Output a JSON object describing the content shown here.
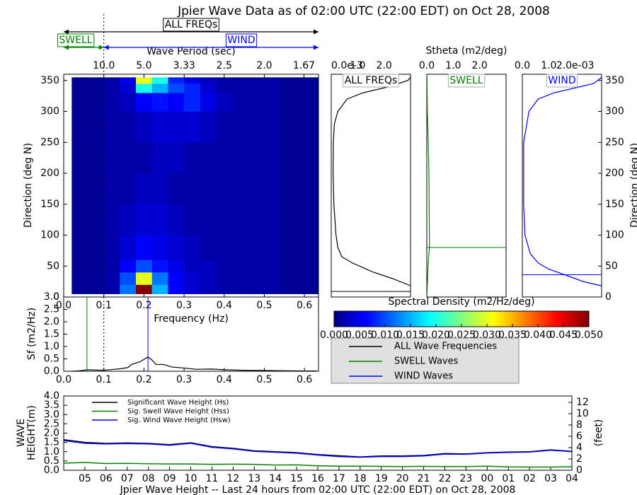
{
  "chart_data": [
    {
      "type": "heatmap",
      "title": "Jpier Wave Data as of 02:00 UTC (22:00 EDT) on Oct 28, 2008",
      "xlabel": "Frequency (Hz)",
      "ylabel": "Direction (deg N)",
      "top_xlabel": "Wave Period (sec)",
      "xlim": [
        0,
        0.635
      ],
      "xticks": [
        {
          "value": 0,
          "label": "0.0"
        },
        0.1,
        0.2,
        0.3,
        0.4,
        0.5,
        0.6
      ],
      "period_ticks": [
        {
          "value": 10,
          "label": "10.0"
        },
        {
          "value": 5,
          "label": "5.0"
        },
        3.33,
        2.5,
        {
          "value": 2,
          "label": "2.0"
        },
        1.67
      ],
      "ylim": [
        0,
        360
      ],
      "yticks": [
        0,
        50,
        100,
        150,
        200,
        250,
        300,
        350
      ],
      "x_bins": [
        0.02,
        0.06,
        0.1,
        0.14,
        0.18,
        0.22,
        0.26,
        0.3,
        0.34,
        0.38,
        0.42,
        0.46,
        0.5,
        0.54,
        0.58,
        0.635
      ],
      "y_bins": [
        5,
        20,
        40,
        60,
        100,
        150,
        200,
        250,
        300,
        330,
        345,
        355
      ],
      "values": [
        [
          0.001,
          0.001,
          0.002,
          0.012,
          0.05,
          0.015,
          0.006,
          0.004,
          0.003,
          0.002,
          0.002,
          0.002,
          0.002,
          0.001,
          0.001
        ],
        [
          0.001,
          0.001,
          0.002,
          0.01,
          0.03,
          0.012,
          0.006,
          0.004,
          0.003,
          0.002,
          0.002,
          0.002,
          0.002,
          0.001,
          0.001
        ],
        [
          0.001,
          0.001,
          0.002,
          0.006,
          0.01,
          0.007,
          0.005,
          0.003,
          0.003,
          0.002,
          0.002,
          0.002,
          0.002,
          0.001,
          0.001
        ],
        [
          0.001,
          0.001,
          0.002,
          0.004,
          0.006,
          0.005,
          0.004,
          0.003,
          0.002,
          0.002,
          0.002,
          0.002,
          0.002,
          0.001,
          0.001
        ],
        [
          0.001,
          0.001,
          0.002,
          0.003,
          0.004,
          0.004,
          0.003,
          0.002,
          0.002,
          0.002,
          0.002,
          0.002,
          0.002,
          0.001,
          0.001
        ],
        [
          0.001,
          0.001,
          0.002,
          0.002,
          0.003,
          0.003,
          0.002,
          0.002,
          0.002,
          0.002,
          0.002,
          0.002,
          0.002,
          0.001,
          0.001
        ],
        [
          0.001,
          0.001,
          0.002,
          0.002,
          0.002,
          0.003,
          0.003,
          0.002,
          0.002,
          0.002,
          0.002,
          0.002,
          0.002,
          0.001,
          0.001
        ],
        [
          0.001,
          0.001,
          0.002,
          0.002,
          0.003,
          0.004,
          0.004,
          0.004,
          0.003,
          0.002,
          0.002,
          0.002,
          0.002,
          0.001,
          0.001
        ],
        [
          0.001,
          0.001,
          0.002,
          0.003,
          0.006,
          0.007,
          0.006,
          0.008,
          0.005,
          0.003,
          0.002,
          0.002,
          0.002,
          0.001,
          0.001
        ],
        [
          0.001,
          0.001,
          0.002,
          0.004,
          0.02,
          0.015,
          0.01,
          0.008,
          0.004,
          0.002,
          0.002,
          0.002,
          0.002,
          0.001,
          0.001
        ],
        [
          0.001,
          0.001,
          0.002,
          0.005,
          0.03,
          0.02,
          0.008,
          0.005,
          0.003,
          0.002,
          0.002,
          0.002,
          0.002,
          0.001,
          0.001
        ]
      ],
      "separation_frequency": 0.1,
      "annotations": [
        {
          "text": "ALL FREQs",
          "color": "#000000"
        },
        {
          "text": "SWELL",
          "color": "#008000"
        },
        {
          "text": "WIND",
          "color": "#0000ff"
        }
      ],
      "colorbar": {
        "label": "Spectral Density (m2/Hz/deg)",
        "lim": [
          0,
          0.05
        ],
        "ticks": [
          {
            "value": 0,
            "label": "0.000"
          },
          {
            "value": 0.005,
            "label": "0.005"
          },
          {
            "value": 0.01,
            "label": "0.010"
          },
          {
            "value": 0.015,
            "label": "0.015"
          },
          {
            "value": 0.02,
            "label": "0.020"
          },
          {
            "value": 0.025,
            "label": "0.025"
          },
          {
            "value": 0.03,
            "label": "0.030"
          },
          {
            "value": 0.035,
            "label": "0.035"
          },
          {
            "value": 0.04,
            "label": "0.040"
          },
          {
            "value": 0.045,
            "label": "0.045"
          },
          {
            "value": 0.05,
            "label": "0.050"
          }
        ]
      }
    },
    {
      "type": "line",
      "ylabel": "Sf (m2/Hz)",
      "xlim": [
        0,
        0.635
      ],
      "xticks": [
        {
          "value": 0,
          "label": "0.0"
        },
        0.1,
        0.2,
        0.3,
        0.4,
        0.5,
        0.6
      ],
      "ylim": [
        0,
        3
      ],
      "yticks": [
        {
          "value": 0,
          "label": "0.0"
        },
        0.5,
        {
          "value": 1,
          "label": "1.0"
        },
        1.5,
        {
          "value": 2,
          "label": "2.0"
        },
        2.5,
        {
          "value": 3,
          "label": "3.0"
        }
      ],
      "x": [
        0.02,
        0.04,
        0.06,
        0.08,
        0.1,
        0.12,
        0.14,
        0.16,
        0.17,
        0.19,
        0.21,
        0.22,
        0.23,
        0.25,
        0.27,
        0.3,
        0.33,
        0.37,
        0.4,
        0.45,
        0.5,
        0.55,
        0.6,
        0.63
      ],
      "series": [
        {
          "name": "ALL Wave Frequencies",
          "color": "#000000",
          "values": [
            0,
            0.02,
            0.06,
            0.05,
            0.04,
            0.07,
            0.1,
            0.15,
            0.28,
            0.38,
            0.58,
            0.45,
            0.28,
            0.27,
            0.17,
            0.13,
            0.08,
            0.09,
            0.06,
            0.04,
            0.03,
            0.02,
            0.01,
            0.01
          ]
        },
        {
          "name": "SWELL Waves",
          "color": "#008000",
          "peak_frequency": 0.058
        },
        {
          "name": "WIND Waves",
          "color": "#0000ff",
          "peak_frequency": 0.21
        }
      ]
    },
    {
      "type": "profile",
      "title": "ALL FREQs",
      "color": "#000000",
      "xlim": [
        0,
        3
      ],
      "xticks": [
        {
          "value": 0,
          "label": "0.0e-3"
        },
        {
          "value": 1,
          "label": "1.0"
        },
        {
          "value": 2,
          "label": "2.0"
        }
      ],
      "ylim": [
        0,
        360
      ],
      "peak_direction": 9,
      "direction": [
        355,
        350,
        340,
        330,
        320,
        300,
        280,
        250,
        200,
        150,
        100,
        80,
        65,
        55,
        40,
        30,
        20,
        18
      ],
      "values": [
        3.0,
        2.9,
        2.2,
        1.2,
        0.6,
        0.25,
        0.12,
        0.08,
        0.07,
        0.1,
        0.18,
        0.25,
        0.4,
        0.8,
        1.6,
        2.3,
        2.9,
        3.0
      ]
    },
    {
      "type": "profile",
      "title": "SWELL",
      "color": "#008000",
      "xlabel": "Stheta (m2/deg)",
      "xlim": [
        0,
        3
      ],
      "xticks": [
        {
          "value": 0,
          "label": "0.0"
        },
        {
          "value": 1,
          "label": "1.0"
        },
        {
          "value": 2,
          "label": "2.0"
        }
      ],
      "ylim": [
        0,
        360
      ],
      "peak_direction": 80,
      "direction": [
        355,
        300,
        260,
        200,
        150,
        100,
        80,
        60,
        20,
        5
      ],
      "values": [
        0.01,
        0.02,
        0.05,
        0.08,
        0.09,
        0.1,
        0.1,
        0.06,
        0.02,
        0.01
      ]
    },
    {
      "type": "profile",
      "title": "WIND",
      "color": "#0000ff",
      "ylabel": "Direction (deg N)",
      "xlim": [
        0,
        3
      ],
      "xticks": [
        {
          "value": 0,
          "label": "0.0"
        },
        {
          "value": 1,
          "label": "1.0"
        },
        {
          "value": 2,
          "label": "2.0e-03"
        }
      ],
      "ylim": [
        0,
        360
      ],
      "yticks": [
        0,
        50,
        100,
        150,
        200,
        250,
        300,
        350
      ],
      "peak_direction": 36,
      "direction": [
        355,
        345,
        340,
        330,
        320,
        300,
        250,
        150,
        100,
        70,
        55,
        45,
        36,
        25,
        18
      ],
      "values": [
        3.0,
        2.7,
        2.2,
        1.2,
        0.6,
        0.25,
        0.05,
        0.05,
        0.1,
        0.3,
        0.6,
        1.0,
        1.6,
        2.3,
        3.0
      ]
    },
    {
      "type": "line",
      "title": "Jpier Wave Height -- Last 24 hours from 02:00 UTC (22:00 EDT) on Oct 28, 2008",
      "ylabel": [
        "WAVE",
        "HEIGHT(m)"
      ],
      "y2label": "(feet)",
      "legend": "upper left",
      "categories": [
        null,
        "05",
        "06",
        "07",
        "08",
        "09",
        "10",
        "11",
        "12",
        "13",
        "14",
        "15",
        "16",
        "17",
        "18",
        "19",
        "20",
        "21",
        "22",
        "23",
        "00",
        "01",
        "02",
        "03",
        "04"
      ],
      "ylim": [
        0,
        4
      ],
      "yticks": [
        {
          "value": 0,
          "label": "0.0"
        },
        0.5,
        {
          "value": 1,
          "label": "1.0"
        },
        1.5,
        {
          "value": 2,
          "label": "2.0"
        },
        2.5,
        {
          "value": 3,
          "label": "3.0"
        },
        3.5,
        {
          "value": 4,
          "label": "4.0"
        }
      ],
      "y2lim": [
        0,
        13.12
      ],
      "y2ticks": [
        0,
        2,
        4,
        6,
        8,
        10,
        12
      ],
      "series": [
        {
          "name": "Significant Wave Height (Hs)",
          "color": "#000000",
          "values": [
            1.65,
            1.5,
            1.45,
            1.47,
            1.45,
            1.38,
            1.48,
            1.27,
            1.18,
            1.05,
            1.0,
            0.95,
            0.85,
            0.78,
            0.72,
            0.77,
            0.77,
            0.8,
            0.9,
            0.88,
            0.95,
            0.98,
            1.0,
            1.1,
            1.02
          ]
        },
        {
          "name": "Sig. Swell Wave Height (Hss)",
          "color": "#008000",
          "values": [
            0.38,
            0.42,
            0.36,
            0.37,
            0.35,
            0.34,
            0.34,
            0.32,
            0.33,
            0.32,
            0.28,
            0.29,
            0.24,
            0.22,
            0.22,
            0.21,
            0.2,
            0.21,
            0.2,
            0.2,
            0.22,
            0.18,
            0.17,
            0.17,
            0.19
          ]
        },
        {
          "name": "Sig. Wind Wave Height (Hsw)",
          "color": "#0000ff",
          "values": [
            1.6,
            1.45,
            1.42,
            1.44,
            1.42,
            1.35,
            1.45,
            1.24,
            1.15,
            1.02,
            0.97,
            0.92,
            0.82,
            0.74,
            0.7,
            0.74,
            0.74,
            0.77,
            0.87,
            0.86,
            0.93,
            0.96,
            0.98,
            1.08,
            1.0
          ]
        }
      ]
    }
  ]
}
